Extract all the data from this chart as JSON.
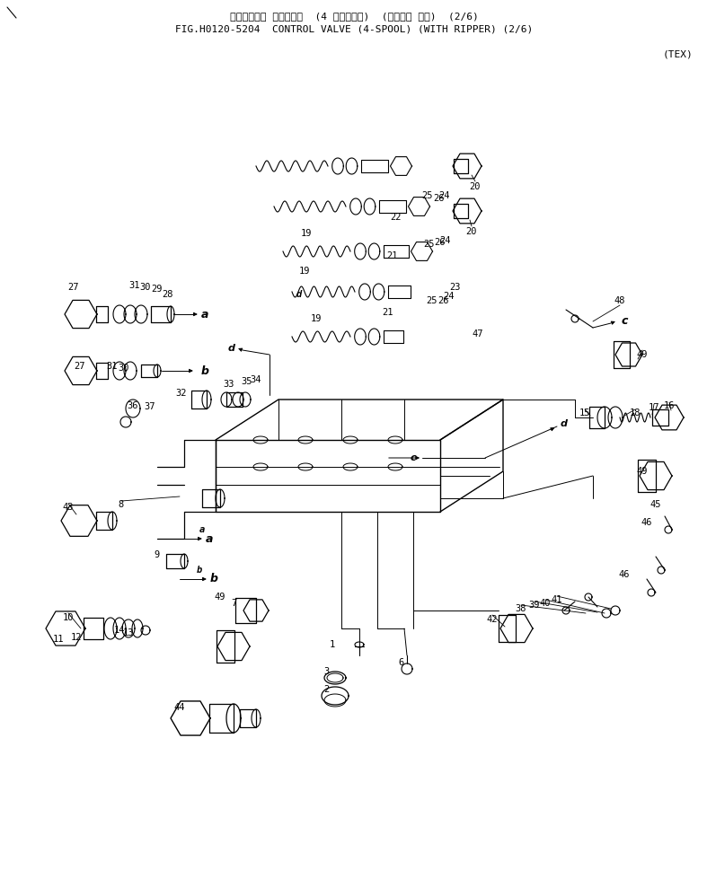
{
  "title_line1": "コントロール パルプ  (4 スプ゚ール)  (リッパ゚ サキ)  (2/6)",
  "title_line2": "FIG.H0120-5204  CONTROL VALVE (4-SPOOL) (WITH RIPPER) (2/6)",
  "tex_label": "(TEX)",
  "bg": "#ffffff",
  "lc": "#000000",
  "fig_w": 7.87,
  "fig_h": 9.98,
  "dpi": 100
}
